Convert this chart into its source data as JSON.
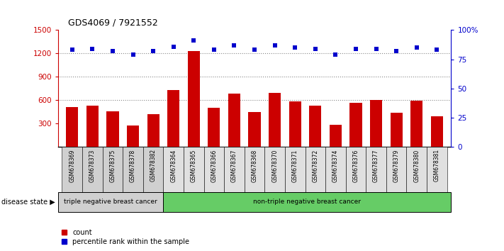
{
  "title": "GDS4069 / 7921552",
  "samples": [
    "GSM678369",
    "GSM678373",
    "GSM678375",
    "GSM678378",
    "GSM678382",
    "GSM678364",
    "GSM678365",
    "GSM678366",
    "GSM678367",
    "GSM678368",
    "GSM678370",
    "GSM678371",
    "GSM678372",
    "GSM678374",
    "GSM678376",
    "GSM678377",
    "GSM678379",
    "GSM678380",
    "GSM678381"
  ],
  "counts": [
    510,
    530,
    460,
    270,
    420,
    730,
    1230,
    500,
    680,
    450,
    690,
    580,
    530,
    280,
    570,
    600,
    440,
    590,
    390
  ],
  "percentiles": [
    83,
    84,
    82,
    79,
    82,
    86,
    91,
    83,
    87,
    83,
    87,
    85,
    84,
    79,
    84,
    84,
    82,
    85,
    83
  ],
  "group1_count": 5,
  "group1_label": "triple negative breast cancer",
  "group2_label": "non-triple negative breast cancer",
  "ylim_left": [
    0,
    1500
  ],
  "ylim_right": [
    0,
    100
  ],
  "yticks_left": [
    300,
    600,
    900,
    1200,
    1500
  ],
  "yticks_right": [
    0,
    25,
    50,
    75,
    100
  ],
  "bar_color": "#cc0000",
  "dot_color": "#0000cc",
  "group1_bg": "#d0d0d0",
  "group2_bg": "#66cc66",
  "disease_state_label": "disease state",
  "legend_count": "count",
  "legend_percentile": "percentile rank within the sample",
  "axis_color": "#cc0000",
  "right_axis_color": "#0000cc",
  "dot_line_color": "#888888"
}
